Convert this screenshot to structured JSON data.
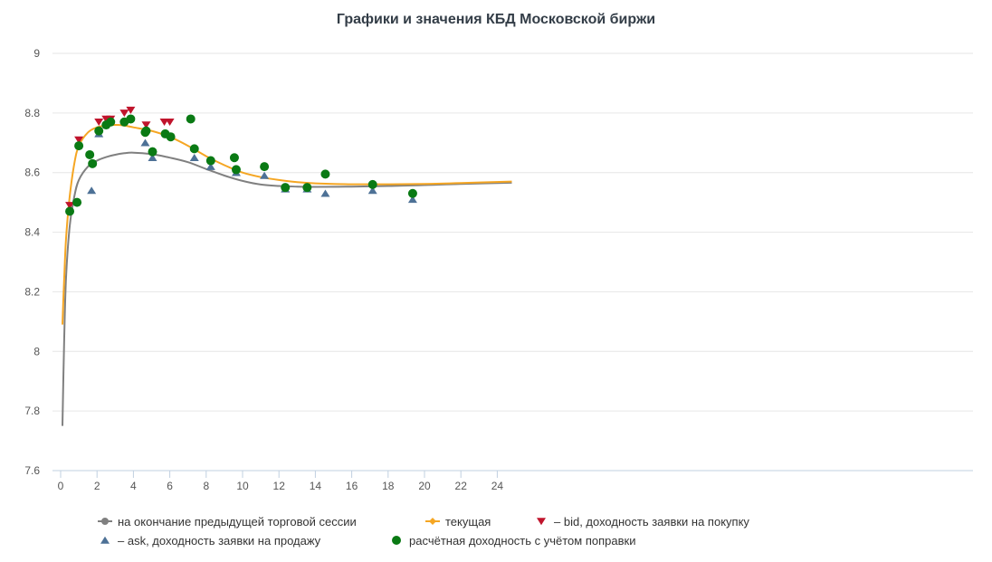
{
  "chart_data": {
    "type": "line",
    "title": "Графики и значения КБД Московской биржи",
    "xlabel": "",
    "ylabel": "",
    "xlim": [
      0,
      25
    ],
    "ylim": [
      7.6,
      9
    ],
    "x_ticks": [
      "0",
      "2",
      "4",
      "6",
      "8",
      "10",
      "12",
      "14",
      "16",
      "18",
      "20",
      "22",
      "24"
    ],
    "y_ticks": [
      "7.6",
      "7.8",
      "8",
      "8.2",
      "8.4",
      "8.6",
      "8.8",
      "9"
    ],
    "grid": "horizontal",
    "legend_position": "bottom",
    "colors": {
      "previous": "#808080",
      "current": "#f5a623",
      "bid": "#c0142c",
      "ask": "#4d7196",
      "adjusted": "#0a7a14"
    },
    "series": [
      {
        "name": "на окончание предыдущей торговой сессии",
        "kind": "line",
        "marker": "circle",
        "color": "#808080",
        "x": [
          0.1,
          0.2,
          0.3,
          0.5,
          0.75,
          1,
          1.5,
          2,
          2.5,
          3,
          3.5,
          4,
          5,
          6,
          7,
          8,
          9,
          10,
          11,
          12,
          13,
          14,
          16,
          18,
          20,
          22,
          24.8
        ],
        "y": [
          7.75,
          8.05,
          8.25,
          8.42,
          8.52,
          8.575,
          8.62,
          8.64,
          8.652,
          8.66,
          8.665,
          8.667,
          8.662,
          8.65,
          8.635,
          8.612,
          8.59,
          8.572,
          8.56,
          8.555,
          8.553,
          8.552,
          8.553,
          8.555,
          8.558,
          8.562,
          8.566
        ]
      },
      {
        "name": "текущая",
        "kind": "line",
        "marker": "diamond",
        "color": "#f5a623",
        "x": [
          0.1,
          0.2,
          0.3,
          0.5,
          0.75,
          1,
          1.5,
          2,
          2.5,
          3,
          3.5,
          4,
          5,
          6,
          7,
          8,
          9,
          10,
          11,
          12,
          13,
          14,
          16,
          18,
          20,
          22,
          24.8
        ],
        "y": [
          8.09,
          8.25,
          8.38,
          8.52,
          8.63,
          8.69,
          8.735,
          8.752,
          8.758,
          8.76,
          8.758,
          8.752,
          8.74,
          8.72,
          8.69,
          8.655,
          8.625,
          8.6,
          8.585,
          8.575,
          8.568,
          8.564,
          8.561,
          8.561,
          8.562,
          8.565,
          8.57
        ]
      },
      {
        "name": "– bid, доходность заявки на покупку",
        "kind": "scatter",
        "marker": "triangle-down",
        "color": "#c0142c",
        "x": [
          0.5,
          1.0,
          2.1,
          2.5,
          2.75,
          3.5,
          3.85,
          4.7,
          5.7,
          6.0
        ],
        "y": [
          8.49,
          8.71,
          8.77,
          8.78,
          8.78,
          8.8,
          8.81,
          8.76,
          8.77,
          8.77
        ]
      },
      {
        "name": "– ask, доходность заявки на продажу",
        "kind": "scatter",
        "marker": "triangle-up",
        "color": "#4d7196",
        "x": [
          1.7,
          2.1,
          4.65,
          5.05,
          7.35,
          8.25,
          9.65,
          11.2,
          12.35,
          13.55,
          14.55,
          17.15,
          19.35
        ],
        "y": [
          8.54,
          8.73,
          8.7,
          8.65,
          8.65,
          8.62,
          8.6,
          8.59,
          8.545,
          8.545,
          8.53,
          8.54,
          8.51
        ]
      },
      {
        "name": "расчётная доходность с учётом поправки",
        "kind": "scatter",
        "marker": "circle",
        "color": "#0a7a14",
        "x": [
          0.5,
          0.9,
          1.0,
          1.6,
          1.75,
          2.1,
          2.5,
          2.75,
          3.5,
          3.85,
          4.65,
          4.7,
          5.05,
          5.75,
          6.05,
          7.15,
          7.35,
          8.25,
          9.55,
          9.65,
          11.2,
          12.35,
          13.55,
          14.55,
          17.15,
          19.35
        ],
        "y": [
          8.47,
          8.5,
          8.69,
          8.66,
          8.63,
          8.74,
          8.76,
          8.77,
          8.77,
          8.78,
          8.735,
          8.74,
          8.67,
          8.73,
          8.72,
          8.78,
          8.68,
          8.64,
          8.65,
          8.61,
          8.62,
          8.55,
          8.55,
          8.595,
          8.56,
          8.53
        ]
      }
    ]
  }
}
